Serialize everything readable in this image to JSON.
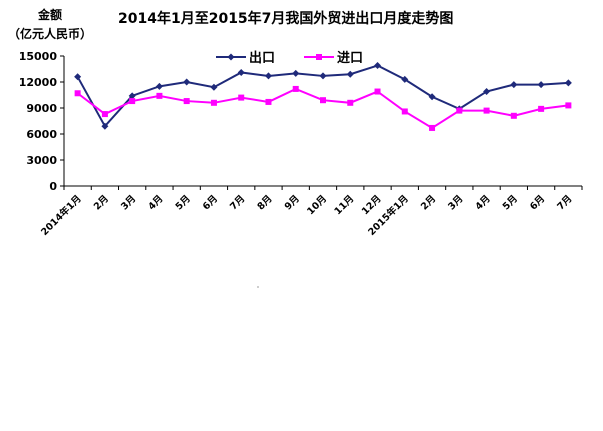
{
  "chart_data": {
    "type": "line",
    "title": "2014年1月至2015年7月我国外贸进出口月度走势图",
    "ylabel": "金额",
    "yunit": "（亿元人民币）",
    "ylim": [
      0,
      15000
    ],
    "yticks": [
      0,
      3000,
      6000,
      9000,
      12000,
      15000
    ],
    "grid": false,
    "legend_position": "top-center",
    "categories": [
      "2014年1月",
      "2月",
      "3月",
      "4月",
      "5月",
      "6月",
      "7月",
      "8月",
      "9月",
      "10月",
      "11月",
      "12月",
      "2015年1月",
      "2月",
      "3月",
      "4月",
      "5月",
      "6月",
      "7月"
    ],
    "series": [
      {
        "name": "出口",
        "color": "#1f2a7a",
        "marker": "diamond",
        "values": [
          12600,
          6900,
          10400,
          11500,
          12000,
          11400,
          13100,
          12700,
          13000,
          12700,
          12900,
          13900,
          12300,
          10300,
          8900,
          10900,
          11700,
          11700,
          11900
        ]
      },
      {
        "name": "进口",
        "color": "#ff00ff",
        "marker": "square",
        "values": [
          10700,
          8300,
          9800,
          10400,
          9800,
          9600,
          10200,
          9700,
          11200,
          9900,
          9600,
          10900,
          8600,
          6700,
          8700,
          8700,
          8100,
          8900,
          9300
        ]
      }
    ]
  }
}
